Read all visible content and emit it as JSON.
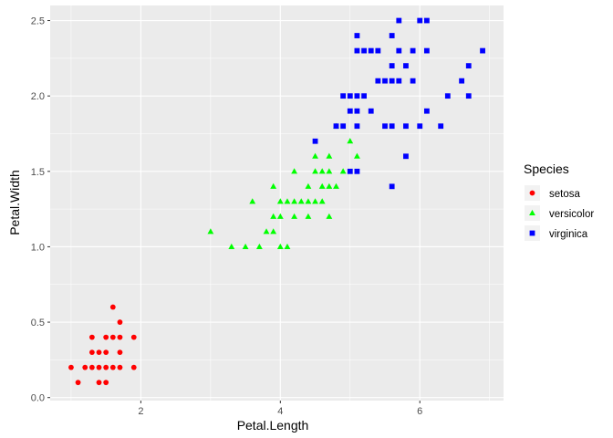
{
  "chart_data": {
    "type": "scatter",
    "xlabel": "Petal.Length",
    "ylabel": "Petal.Width",
    "xlim": [
      0.7,
      7.2
    ],
    "ylim": [
      -0.02,
      2.6
    ],
    "x_ticks": [
      2,
      4,
      6
    ],
    "y_ticks": [
      0.0,
      0.5,
      1.0,
      1.5,
      2.0,
      2.5
    ],
    "x_tick_labels": [
      "2",
      "4",
      "6"
    ],
    "y_tick_labels": [
      "0.0",
      "0.5",
      "1.0",
      "1.5",
      "2.0",
      "2.5"
    ],
    "background": "#ebebeb",
    "grid": true,
    "legend": {
      "title": "Species",
      "position": "right"
    },
    "series": [
      {
        "name": "setosa",
        "color": "#ff0000",
        "shape": "circle",
        "points": [
          [
            1.0,
            0.2
          ],
          [
            1.1,
            0.1
          ],
          [
            1.2,
            0.2
          ],
          [
            1.3,
            0.2
          ],
          [
            1.3,
            0.3
          ],
          [
            1.3,
            0.4
          ],
          [
            1.4,
            0.1
          ],
          [
            1.4,
            0.2
          ],
          [
            1.4,
            0.3
          ],
          [
            1.5,
            0.1
          ],
          [
            1.5,
            0.2
          ],
          [
            1.5,
            0.3
          ],
          [
            1.5,
            0.4
          ],
          [
            1.6,
            0.2
          ],
          [
            1.6,
            0.4
          ],
          [
            1.6,
            0.6
          ],
          [
            1.7,
            0.2
          ],
          [
            1.7,
            0.3
          ],
          [
            1.7,
            0.4
          ],
          [
            1.7,
            0.5
          ],
          [
            1.9,
            0.2
          ],
          [
            1.9,
            0.4
          ]
        ]
      },
      {
        "name": "versicolor",
        "color": "#00ff00",
        "shape": "triangle",
        "points": [
          [
            3.0,
            1.1
          ],
          [
            3.3,
            1.0
          ],
          [
            3.5,
            1.0
          ],
          [
            3.6,
            1.3
          ],
          [
            3.7,
            1.0
          ],
          [
            3.8,
            1.1
          ],
          [
            3.9,
            1.1
          ],
          [
            3.9,
            1.2
          ],
          [
            3.9,
            1.4
          ],
          [
            4.0,
            1.0
          ],
          [
            4.0,
            1.2
          ],
          [
            4.0,
            1.3
          ],
          [
            4.1,
            1.0
          ],
          [
            4.1,
            1.3
          ],
          [
            4.2,
            1.2
          ],
          [
            4.2,
            1.3
          ],
          [
            4.2,
            1.5
          ],
          [
            4.3,
            1.3
          ],
          [
            4.4,
            1.2
          ],
          [
            4.4,
            1.3
          ],
          [
            4.4,
            1.4
          ],
          [
            4.5,
            1.3
          ],
          [
            4.5,
            1.5
          ],
          [
            4.5,
            1.6
          ],
          [
            4.6,
            1.3
          ],
          [
            4.6,
            1.4
          ],
          [
            4.6,
            1.5
          ],
          [
            4.7,
            1.2
          ],
          [
            4.7,
            1.4
          ],
          [
            4.7,
            1.5
          ],
          [
            4.7,
            1.6
          ],
          [
            4.8,
            1.4
          ],
          [
            4.8,
            1.8
          ],
          [
            4.9,
            1.5
          ],
          [
            5.0,
            1.7
          ],
          [
            5.1,
            1.6
          ]
        ]
      },
      {
        "name": "virginica",
        "color": "#0000ff",
        "shape": "square",
        "points": [
          [
            4.5,
            1.7
          ],
          [
            4.8,
            1.8
          ],
          [
            4.9,
            1.8
          ],
          [
            4.9,
            2.0
          ],
          [
            5.0,
            1.5
          ],
          [
            5.0,
            1.9
          ],
          [
            5.0,
            2.0
          ],
          [
            5.1,
            1.5
          ],
          [
            5.1,
            1.8
          ],
          [
            5.1,
            1.9
          ],
          [
            5.1,
            2.0
          ],
          [
            5.1,
            2.3
          ],
          [
            5.1,
            2.4
          ],
          [
            5.2,
            2.0
          ],
          [
            5.2,
            2.3
          ],
          [
            5.3,
            1.9
          ],
          [
            5.3,
            2.3
          ],
          [
            5.4,
            2.1
          ],
          [
            5.4,
            2.3
          ],
          [
            5.5,
            1.8
          ],
          [
            5.5,
            2.1
          ],
          [
            5.6,
            1.4
          ],
          [
            5.6,
            1.8
          ],
          [
            5.6,
            2.1
          ],
          [
            5.6,
            2.2
          ],
          [
            5.6,
            2.4
          ],
          [
            5.7,
            2.1
          ],
          [
            5.7,
            2.3
          ],
          [
            5.7,
            2.5
          ],
          [
            5.8,
            1.6
          ],
          [
            5.8,
            1.8
          ],
          [
            5.8,
            2.2
          ],
          [
            5.9,
            2.1
          ],
          [
            5.9,
            2.3
          ],
          [
            6.0,
            1.8
          ],
          [
            6.0,
            2.5
          ],
          [
            6.1,
            1.9
          ],
          [
            6.1,
            2.3
          ],
          [
            6.1,
            2.5
          ],
          [
            6.3,
            1.8
          ],
          [
            6.4,
            2.0
          ],
          [
            6.6,
            2.1
          ],
          [
            6.7,
            2.0
          ],
          [
            6.7,
            2.2
          ],
          [
            6.9,
            2.3
          ]
        ]
      }
    ]
  }
}
